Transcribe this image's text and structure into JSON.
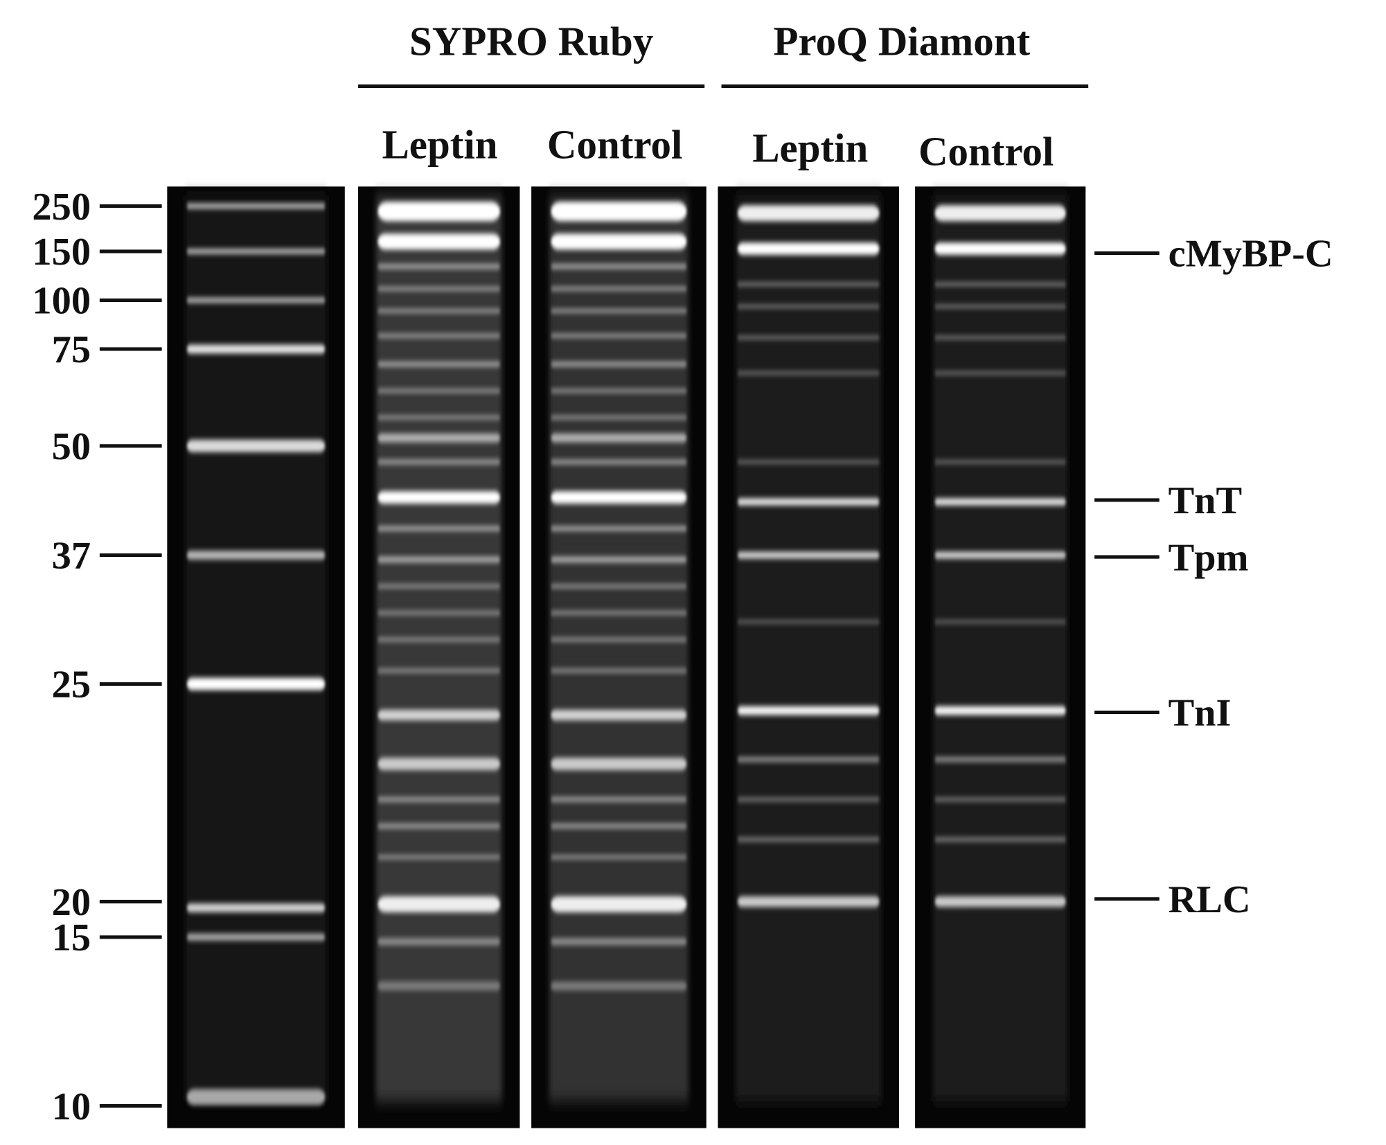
{
  "groups": [
    {
      "title": "SYPRO Ruby",
      "lanes": [
        "Leptin",
        "Control"
      ]
    },
    {
      "title": "ProQ Diamont",
      "lanes": [
        "Leptin",
        "Control"
      ]
    }
  ],
  "markers": [
    "250",
    "150",
    "100",
    "75",
    "50",
    "37",
    "25",
    "20",
    "15",
    "10"
  ],
  "bands": [
    "cMyBP-C",
    "TnT",
    "Tpm",
    "TnI",
    "RLC"
  ]
}
